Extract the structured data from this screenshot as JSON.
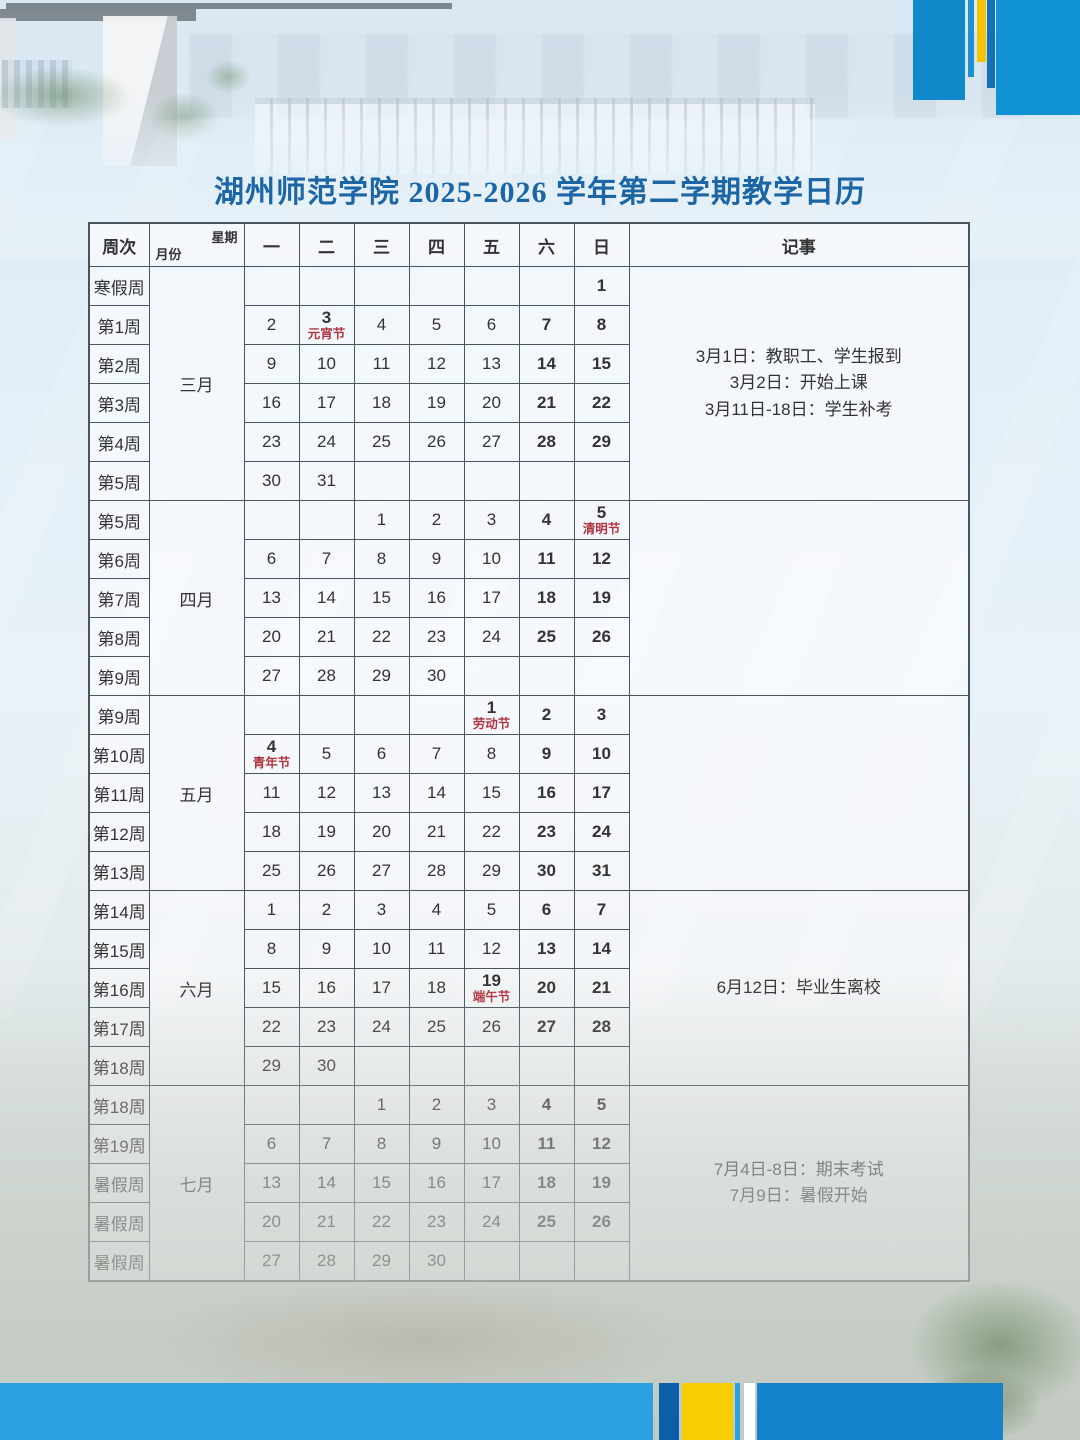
{
  "title": "湖州师范学院 2025-2026 学年第二学期教学日历",
  "colors": {
    "title_blue": "#1d66a6",
    "weekend_red": "#b23440",
    "table_border": "#49545f",
    "bar_blue": "#1583cb",
    "bar_light_blue": "#2aa1e0",
    "bar_dark_blue": "#0b5fa8",
    "bar_yellow": "#f8cd02"
  },
  "table": {
    "corner": {
      "week": "周次",
      "weekday": "星期",
      "month": "月份"
    },
    "day_headers": [
      {
        "label": "一",
        "red": false
      },
      {
        "label": "二",
        "red": false
      },
      {
        "label": "三",
        "red": false
      },
      {
        "label": "四",
        "red": false
      },
      {
        "label": "五",
        "red": false
      },
      {
        "label": "六",
        "red": true
      },
      {
        "label": "日",
        "red": true
      }
    ],
    "notes_header": "记事",
    "months": [
      {
        "name": "三月",
        "notes": [
          "3月1日：教职工、学生报到",
          "3月2日：开始上课",
          "3月11日-18日：学生补考"
        ],
        "weeks": [
          {
            "label": "寒假周",
            "days": [
              null,
              null,
              null,
              null,
              null,
              null,
              "1"
            ]
          },
          {
            "label": "第1周",
            "days": [
              "2",
              {
                "n": "3",
                "holiday": "元宵节"
              },
              "4",
              "5",
              "6",
              "7",
              "8"
            ]
          },
          {
            "label": "第2周",
            "days": [
              "9",
              "10",
              "11",
              "12",
              "13",
              "14",
              "15"
            ]
          },
          {
            "label": "第3周",
            "days": [
              "16",
              "17",
              "18",
              "19",
              "20",
              "21",
              "22"
            ]
          },
          {
            "label": "第4周",
            "days": [
              "23",
              "24",
              "25",
              "26",
              "27",
              "28",
              "29"
            ]
          },
          {
            "label": "第5周",
            "days": [
              "30",
              "31",
              null,
              null,
              null,
              null,
              null
            ]
          }
        ]
      },
      {
        "name": "四月",
        "notes": [],
        "weeks": [
          {
            "label": "第5周",
            "days": [
              null,
              null,
              "1",
              "2",
              "3",
              "4",
              {
                "n": "5",
                "holiday": "清明节"
              }
            ]
          },
          {
            "label": "第6周",
            "days": [
              "6",
              "7",
              "8",
              "9",
              "10",
              "11",
              "12"
            ]
          },
          {
            "label": "第7周",
            "days": [
              "13",
              "14",
              "15",
              "16",
              "17",
              "18",
              "19"
            ]
          },
          {
            "label": "第8周",
            "days": [
              "20",
              "21",
              "22",
              "23",
              "24",
              "25",
              "26"
            ]
          },
          {
            "label": "第9周",
            "days": [
              "27",
              "28",
              "29",
              "30",
              null,
              null,
              null
            ]
          }
        ]
      },
      {
        "name": "五月",
        "notes": [],
        "weeks": [
          {
            "label": "第9周",
            "days": [
              null,
              null,
              null,
              null,
              {
                "n": "1",
                "holiday": "劳动节"
              },
              "2",
              "3"
            ]
          },
          {
            "label": "第10周",
            "days": [
              {
                "n": "4",
                "holiday": "青年节"
              },
              "5",
              "6",
              "7",
              "8",
              "9",
              "10"
            ]
          },
          {
            "label": "第11周",
            "days": [
              "11",
              "12",
              "13",
              "14",
              "15",
              "16",
              "17"
            ]
          },
          {
            "label": "第12周",
            "days": [
              "18",
              "19",
              "20",
              "21",
              "22",
              "23",
              "24"
            ]
          },
          {
            "label": "第13周",
            "days": [
              "25",
              "26",
              "27",
              "28",
              "29",
              "30",
              "31"
            ]
          }
        ]
      },
      {
        "name": "六月",
        "notes": [
          "6月12日：毕业生离校"
        ],
        "weeks": [
          {
            "label": "第14周",
            "days": [
              "1",
              "2",
              "3",
              "4",
              "5",
              "6",
              "7"
            ]
          },
          {
            "label": "第15周",
            "days": [
              "8",
              "9",
              "10",
              "11",
              "12",
              "13",
              "14"
            ]
          },
          {
            "label": "第16周",
            "days": [
              "15",
              "16",
              "17",
              "18",
              {
                "n": "19",
                "holiday": "端午节"
              },
              "20",
              "21"
            ]
          },
          {
            "label": "第17周",
            "days": [
              "22",
              "23",
              "24",
              "25",
              "26",
              "27",
              "28"
            ]
          },
          {
            "label": "第18周",
            "days": [
              "29",
              "30",
              null,
              null,
              null,
              null,
              null
            ]
          }
        ]
      },
      {
        "name": "七月",
        "notes": [
          "7月4日-8日：期末考试",
          "7月9日：暑假开始"
        ],
        "weeks": [
          {
            "label": "第18周",
            "days": [
              null,
              null,
              "1",
              "2",
              "3",
              "4",
              "5"
            ]
          },
          {
            "label": "第19周",
            "days": [
              "6",
              "7",
              "8",
              "9",
              "10",
              "11",
              "12"
            ]
          },
          {
            "label": "暑假周",
            "days": [
              "13",
              "14",
              "15",
              "16",
              "17",
              "18",
              "19"
            ]
          },
          {
            "label": "暑假周",
            "days": [
              "20",
              "21",
              "22",
              "23",
              "24",
              "25",
              "26"
            ]
          },
          {
            "label": "暑假周",
            "days": [
              "27",
              "28",
              "29",
              "30",
              null,
              null,
              null
            ]
          }
        ]
      }
    ]
  }
}
